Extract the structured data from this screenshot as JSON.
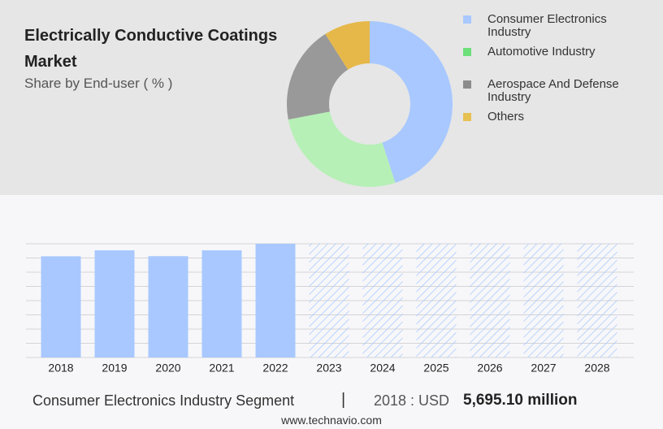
{
  "header": {
    "title": "Electrically Conductive Coatings Market",
    "subtitle": "Share by End-user ( % )"
  },
  "chart_data": [
    {
      "type": "pie",
      "donut": true,
      "categories": [
        "Consumer Electronics Industry",
        "Automotive Industry",
        "Aerospace And Defense Industry",
        "Others"
      ],
      "values": [
        45,
        27,
        19,
        9
      ],
      "colors": [
        "#a8c8ff",
        "#b6f0b6",
        "#999999",
        "#e6b84a"
      ],
      "legend_colors": [
        "#a8c8ff",
        "#6ee07a",
        "#8c8c8c",
        "#e6c050"
      ]
    },
    {
      "type": "bar",
      "categories": [
        "2018",
        "2019",
        "2020",
        "2021",
        "2022",
        "2023",
        "2024",
        "2025",
        "2026",
        "2027",
        "2028"
      ],
      "values": [
        5695.1,
        6030,
        5700,
        6030,
        6400,
        null,
        null,
        null,
        null,
        null,
        null
      ],
      "color": "#a8c8ff",
      "ylim": [
        0,
        6400
      ],
      "yticks": [
        0,
        800,
        1600,
        2400,
        3200,
        4000,
        4800,
        5600,
        6400
      ],
      "grid": true
    }
  ],
  "footer": {
    "segment": "Consumer Electronics Industry Segment",
    "separator": "|",
    "year_label": "2018 : USD",
    "value": "5,695.10 million",
    "source": "www.technavio.com"
  }
}
